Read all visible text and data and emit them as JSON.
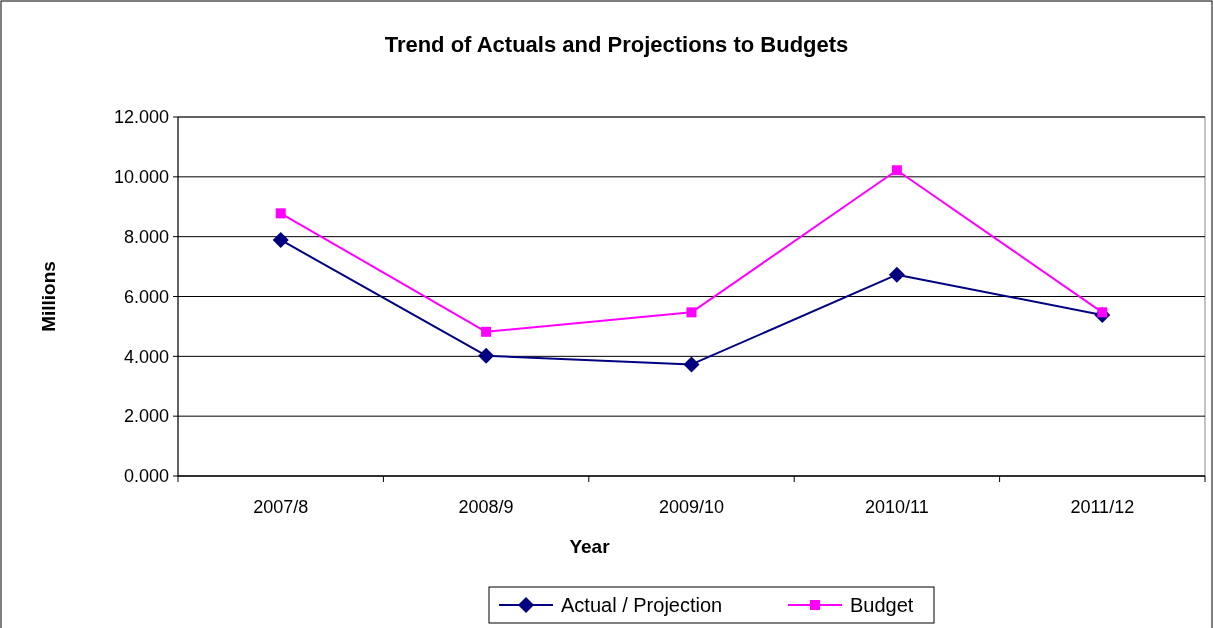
{
  "chart_data": {
    "type": "line",
    "title": "Trend of Actuals and Projections to Budgets",
    "xlabel": "Year",
    "ylabel": "Millions",
    "categories": [
      "2007/8",
      "2008/9",
      "2009/10",
      "2010/11",
      "2011/12"
    ],
    "series": [
      {
        "name": "Actual / Projection",
        "color": "#000080",
        "marker": "diamond",
        "values": [
          7.89,
          4.02,
          3.73,
          6.73,
          5.38
        ]
      },
      {
        "name": "Budget",
        "color": "#ff00ff",
        "marker": "square",
        "values": [
          8.78,
          4.82,
          5.47,
          10.22,
          5.47
        ]
      }
    ],
    "ylim": [
      0,
      12
    ],
    "yticks": [
      {
        "value": 0,
        "label": "0.000"
      },
      {
        "value": 2,
        "label": "2.000"
      },
      {
        "value": 4,
        "label": "4.000"
      },
      {
        "value": 6,
        "label": "6.000"
      },
      {
        "value": 8,
        "label": "8.000"
      },
      {
        "value": 10,
        "label": "10.000"
      },
      {
        "value": 12,
        "label": "12.000"
      }
    ],
    "grid": "y",
    "legend": "bottom",
    "line_style": "solid"
  }
}
